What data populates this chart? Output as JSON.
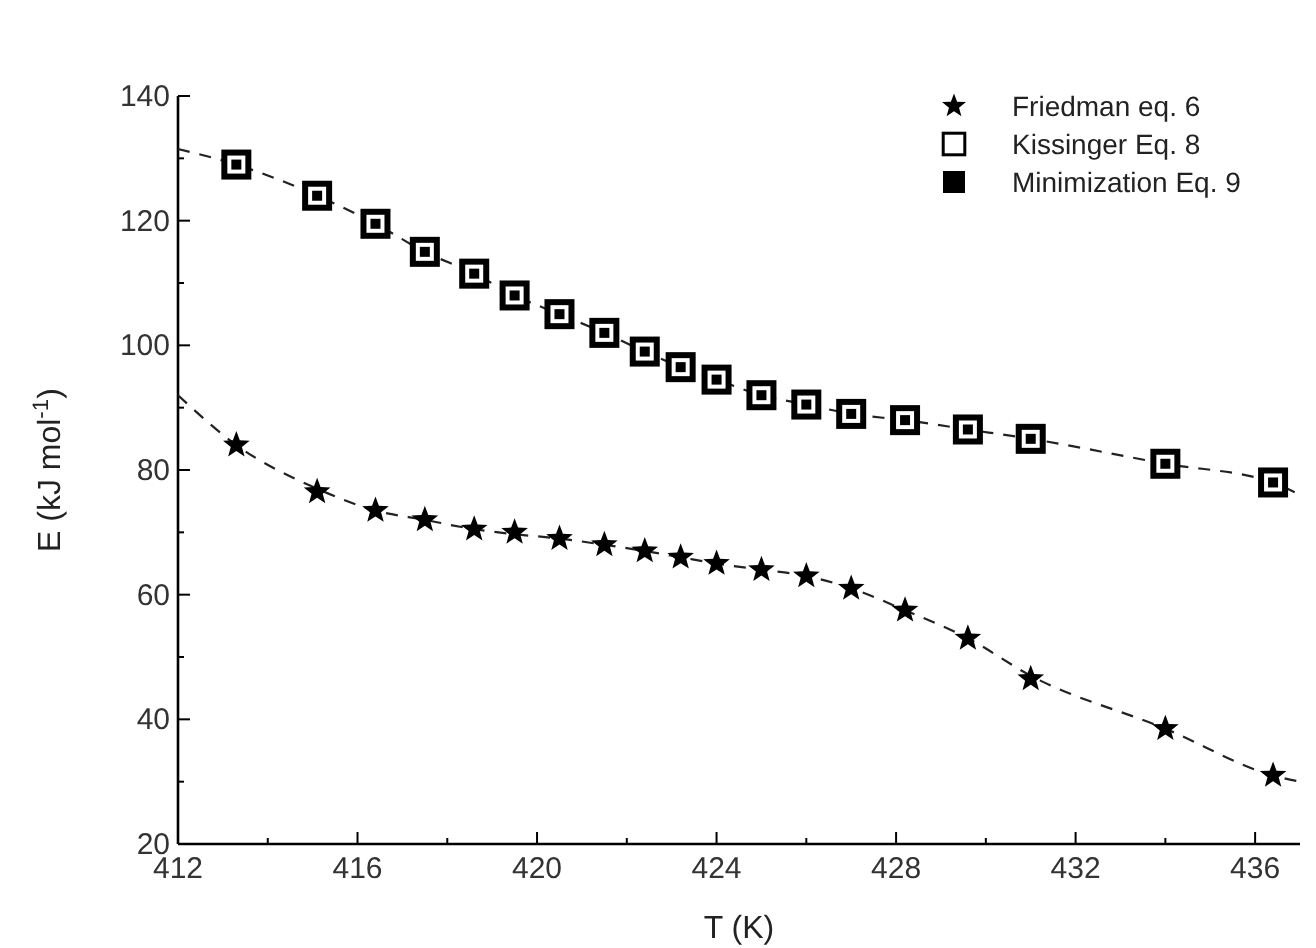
{
  "chart_data": {
    "type": "scatter",
    "xlabel": "T (K)",
    "ylabel": "E (kJ mol$^{-1}$)",
    "xlim": [
      412,
      437
    ],
    "ylim": [
      20,
      140
    ],
    "xticks": [
      412,
      {
        "value": 414,
        "label": null
      },
      416,
      {
        "value": 418,
        "label": null
      },
      420,
      {
        "value": 422,
        "label": null
      },
      424,
      {
        "value": 426,
        "label": null
      },
      428,
      {
        "value": 430,
        "label": null
      },
      432,
      {
        "value": 434,
        "label": null
      },
      436
    ],
    "yticks": [
      20,
      {
        "value": 30,
        "label": null
      },
      40,
      {
        "value": 50,
        "label": null
      },
      60,
      {
        "value": 70,
        "label": null
      },
      80,
      {
        "value": 90,
        "label": null
      },
      100,
      {
        "value": 110,
        "label": null
      },
      120,
      {
        "value": 130,
        "label": null
      },
      140
    ],
    "grid": false,
    "legend": "top right",
    "series": [
      {
        "type": "line",
        "marker": "none",
        "line_style": "dashed",
        "color": "#222222",
        "x": [
          412,
          413.3,
          415.1,
          416.4,
          417.5,
          418.6,
          419.5,
          420.5,
          421.5,
          422.4,
          423.2,
          424.0,
          425.0,
          426.0,
          427.0,
          428.2,
          429.6,
          431.0,
          434.0,
          436.4,
          437
        ],
        "values": [
          131.5,
          129,
          124,
          119.5,
          115,
          111.5,
          108,
          105,
          102,
          99,
          96.5,
          94.5,
          92,
          90.5,
          89,
          88,
          86.5,
          85,
          81,
          78,
          76
        ]
      },
      {
        "type": "line",
        "marker": "none",
        "line_style": "dashed",
        "color": "#222222",
        "x": [
          412,
          413.3,
          415.1,
          416.4,
          417.5,
          418.6,
          419.5,
          420.5,
          421.5,
          422.4,
          423.2,
          424.0,
          425.0,
          426.0,
          427.0,
          428.2,
          429.6,
          431.0,
          434.0,
          436.4,
          437
        ],
        "values": [
          92,
          84,
          77,
          73.5,
          72,
          70.5,
          69.7,
          69,
          68,
          67,
          66,
          65,
          64,
          63,
          61,
          57.5,
          53,
          47,
          38.5,
          31,
          30
        ]
      },
      {
        "name": "Friedman eq. 6",
        "marker": "star",
        "color": "#000000",
        "x": [
          413.3,
          415.1,
          416.4,
          417.5,
          418.6,
          419.5,
          420.5,
          421.5,
          422.4,
          423.2,
          424.0,
          425.0,
          426.0,
          427.0,
          428.2,
          429.6,
          431.0,
          434.0,
          436.4
        ],
        "values": [
          84,
          76.5,
          73.5,
          72,
          70.5,
          70,
          69,
          68,
          67,
          66,
          65,
          64,
          63,
          61,
          57.5,
          53,
          46.5,
          38.5,
          31
        ]
      },
      {
        "name": "Kissinger Eq. 8",
        "marker": "square",
        "color": "#ffffff",
        "x": [
          413.3,
          415.1,
          416.4,
          417.5,
          418.6,
          419.5,
          420.5,
          421.5,
          422.4,
          423.2,
          424.0,
          425.0,
          426.0,
          427.0,
          428.2,
          429.6,
          431.0,
          434.0,
          436.4
        ],
        "values": [
          129,
          124,
          119.5,
          115,
          111.5,
          108,
          105,
          102,
          99,
          96.5,
          94.5,
          92,
          90.5,
          89,
          88,
          86.5,
          85,
          81,
          78
        ]
      },
      {
        "name": "Minimization Eq. 9",
        "marker": "square",
        "color": "#000000",
        "x": [
          413.3,
          415.1,
          416.4,
          417.5,
          418.6,
          419.5,
          420.5,
          421.5,
          422.4,
          423.2,
          424.0,
          425.0,
          426.0,
          427.0,
          428.2,
          429.6,
          431.0,
          434.0,
          436.4
        ],
        "values": [
          129,
          124,
          119.5,
          115,
          111.5,
          108,
          105,
          102,
          99,
          96.5,
          94.5,
          92,
          90.5,
          89,
          88,
          86.5,
          85,
          81,
          78
        ]
      }
    ]
  }
}
